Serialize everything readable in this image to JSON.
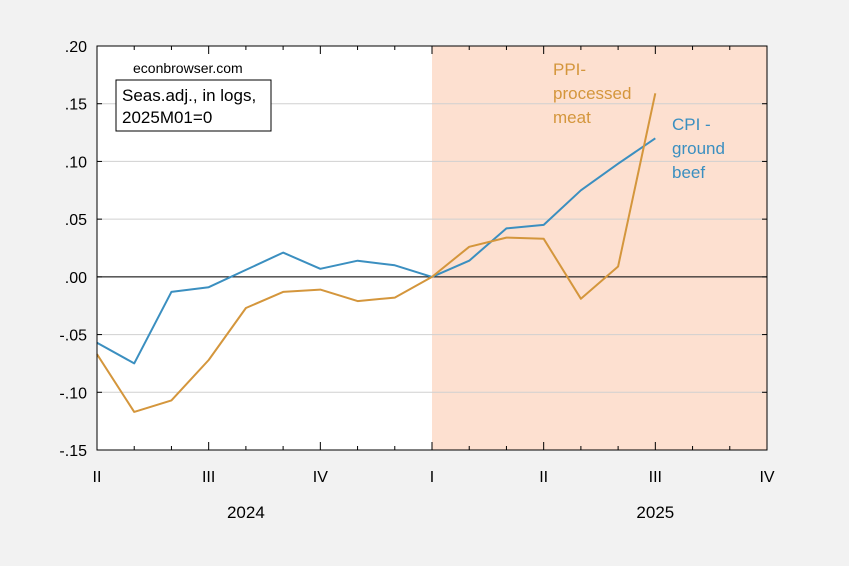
{
  "chart_data": {
    "type": "line",
    "source": "econbrowser.com",
    "note_lines": [
      "Seas.adj., in logs,",
      "2025M01=0"
    ],
    "ylim": [
      -0.15,
      0.2
    ],
    "y_ticks": [
      -0.15,
      -0.1,
      -0.05,
      0.0,
      0.05,
      0.1,
      0.15,
      0.2
    ],
    "y_tick_labels": [
      "-.15",
      "-.10",
      "-.05",
      ".00",
      ".05",
      ".10",
      ".15",
      ".20"
    ],
    "x_ticks": [
      {
        "date": "2024-04",
        "label": "II"
      },
      {
        "date": "2024-07",
        "label": "III"
      },
      {
        "date": "2024-10",
        "label": "IV"
      },
      {
        "date": "2025-01",
        "label": "I"
      },
      {
        "date": "2025-04",
        "label": "II"
      },
      {
        "date": "2025-07",
        "label": "III"
      },
      {
        "date": "2025-10",
        "label": "IV"
      }
    ],
    "years": [
      {
        "label": "2024",
        "center_date": "2024-08"
      },
      {
        "label": "2025",
        "center_date": "2025-07"
      }
    ],
    "shaded_region": {
      "start": "2025-01",
      "end": "2025-10",
      "color": "#fde0d0"
    },
    "zero_line": true,
    "grid": true,
    "x": [
      "2024-04",
      "2024-05",
      "2024-06",
      "2024-07",
      "2024-08",
      "2024-09",
      "2024-10",
      "2024-11",
      "2024-12",
      "2025-01",
      "2025-02",
      "2025-03",
      "2025-04",
      "2025-05",
      "2025-06",
      "2025-07"
    ],
    "series": [
      {
        "name_lines": [
          "CPI -",
          "ground",
          "beef"
        ],
        "color": "#3b8fc0",
        "values": [
          -0.057,
          -0.075,
          -0.013,
          -0.009,
          0.006,
          0.021,
          0.007,
          0.014,
          0.01,
          0.0,
          0.014,
          0.042,
          0.045,
          0.075,
          0.098,
          0.12
        ]
      },
      {
        "name_lines": [
          "PPI-",
          "processed",
          "meat"
        ],
        "color": "#d4963c",
        "values": [
          -0.067,
          -0.117,
          -0.107,
          -0.072,
          -0.027,
          -0.013,
          -0.011,
          -0.021,
          -0.018,
          0.0,
          0.026,
          0.034,
          0.033,
          -0.019,
          0.009,
          0.159
        ]
      }
    ]
  }
}
